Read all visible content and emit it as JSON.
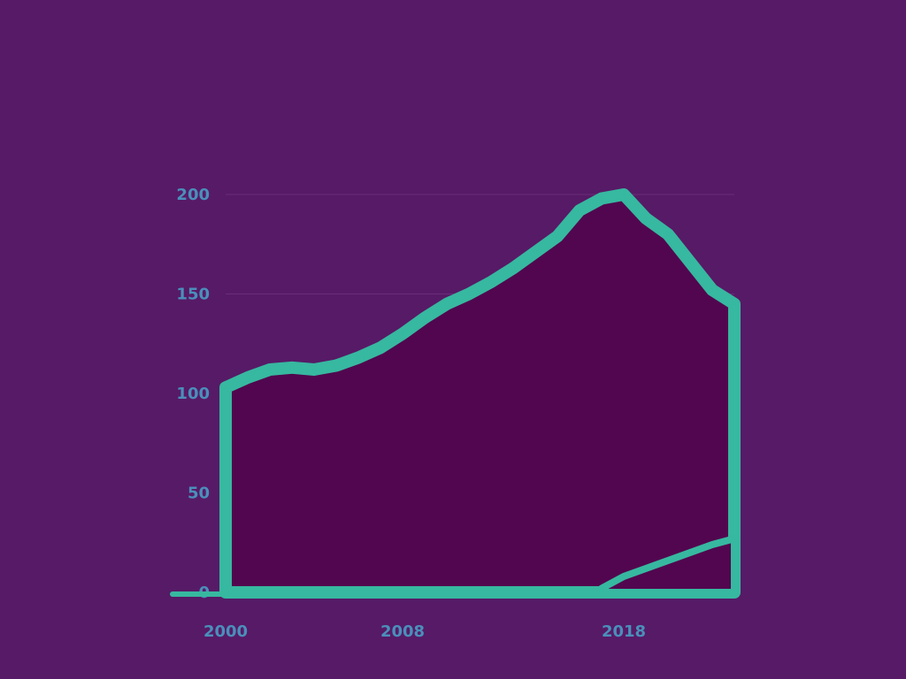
{
  "colors": {
    "background": "#571a66",
    "area_fill": "#52064f",
    "outline": "#37b8a0",
    "text": "#4a8fbb",
    "gridline": "#6a2d78"
  },
  "chart_data": {
    "type": "area",
    "title": "",
    "subtitle": "",
    "note": "",
    "xlabel": "",
    "ylabel": "",
    "xlim": [
      2000,
      2023
    ],
    "ylim": [
      0,
      220
    ],
    "x_ticks": [
      2000,
      2008,
      2018
    ],
    "y_ticks": [
      0,
      50,
      100,
      150,
      200
    ],
    "grid": true,
    "legend": "none",
    "series": [
      {
        "x": [
          2000,
          2001,
          2002,
          2003,
          2004,
          2005,
          2006,
          2007,
          2008,
          2009,
          2010,
          2011,
          2012,
          2013,
          2014,
          2015,
          2016,
          2017,
          2018,
          2019,
          2020,
          2021,
          2022,
          2023
        ],
        "values": [
          103,
          108,
          112,
          113,
          112,
          114,
          118,
          123,
          130,
          138,
          145,
          150,
          156,
          163,
          171,
          179,
          192,
          198,
          200,
          188,
          180,
          166,
          152,
          145
        ]
      },
      {
        "x": [
          2017,
          2018,
          2019,
          2020,
          2021,
          2022,
          2023
        ],
        "values": [
          2,
          8,
          12,
          16,
          20,
          24,
          27
        ]
      }
    ]
  }
}
